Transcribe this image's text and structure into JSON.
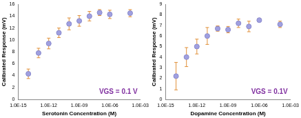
{
  "chart_data": [
    {
      "type": "scatter",
      "x_label": "Serotonin Concentration (M)",
      "y_label": "Calibrated Response (mV)",
      "annotation": "VGS = 0.1 V",
      "log": "x",
      "grid": false,
      "marker": "circle",
      "color": "#a0a0e0",
      "x": [
        1e-14,
        1e-13,
        1e-12,
        1e-11,
        1e-10,
        1e-09,
        1e-08,
        1e-07,
        1e-06,
        0.0001
      ],
      "values": [
        4.3,
        7.8,
        9.4,
        11.2,
        12.7,
        13.2,
        14.0,
        14.6,
        14.3,
        14.5
      ],
      "errors": [
        0.8,
        0.8,
        0.9,
        0.8,
        1.0,
        0.9,
        0.8,
        0.5,
        0.7,
        0.6
      ],
      "xlim": [
        1e-15,
        0.001
      ],
      "xticks": [
        {
          "value": 1e-15,
          "label": "1.0E-15"
        },
        {
          "value": 1e-12,
          "label": "1.0E-12"
        },
        {
          "value": 1e-09,
          "label": "1.0E-09"
        },
        {
          "value": 1e-06,
          "label": "1.0E-06"
        },
        {
          "value": 0.001,
          "label": "1.0E-03"
        }
      ],
      "ylim": [
        0,
        16
      ],
      "yticks": [
        0,
        2,
        4,
        6,
        8,
        10,
        12,
        14,
        16
      ]
    },
    {
      "type": "scatter",
      "x_label": "Dopamine Concentration (M)",
      "y_label": "Calibrated Response (mV)",
      "annotation": "VGS = 0.1V",
      "log": "x",
      "grid": false,
      "marker": "circle",
      "color": "#a0a0e0",
      "x": [
        1e-14,
        1e-13,
        1e-12,
        1e-11,
        1e-10,
        1e-09,
        1e-08,
        1e-07,
        1e-06,
        0.0001
      ],
      "values": [
        2.2,
        4.0,
        5.0,
        6.0,
        6.7,
        6.6,
        7.2,
        6.9,
        7.5,
        7.1
      ],
      "errors": [
        1.3,
        0.9,
        0.7,
        0.8,
        0.25,
        0.3,
        0.4,
        0.5,
        0.15,
        0.3
      ],
      "xlim": [
        1e-15,
        0.001
      ],
      "xticks": [
        {
          "value": 1e-15,
          "label": "1.0E-15"
        },
        {
          "value": 1e-12,
          "label": "1.0E-12"
        },
        {
          "value": 1e-09,
          "label": "1.0E-09"
        },
        {
          "value": 1e-06,
          "label": "1.0E-06"
        },
        {
          "value": 0.001,
          "label": "1.0E-03"
        }
      ],
      "ylim": [
        0,
        9
      ],
      "yticks": [
        0,
        1,
        2,
        3,
        4,
        5,
        6,
        7,
        8,
        9
      ]
    }
  ]
}
